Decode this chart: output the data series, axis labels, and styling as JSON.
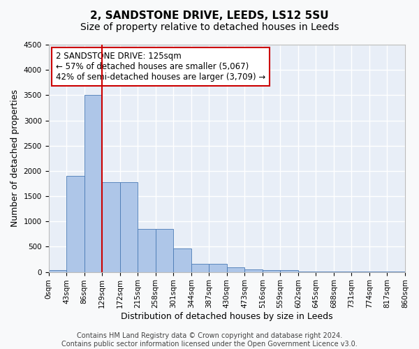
{
  "title": "2, SANDSTONE DRIVE, LEEDS, LS12 5SU",
  "subtitle": "Size of property relative to detached houses in Leeds",
  "xlabel": "Distribution of detached houses by size in Leeds",
  "ylabel": "Number of detached properties",
  "bar_values": [
    40,
    1900,
    3500,
    1780,
    1780,
    850,
    850,
    460,
    160,
    160,
    90,
    55,
    40,
    30,
    15,
    10,
    8,
    5,
    4,
    3
  ],
  "bin_edges": [
    "0sqm",
    "43sqm",
    "86sqm",
    "129sqm",
    "172sqm",
    "215sqm",
    "258sqm",
    "301sqm",
    "344sqm",
    "387sqm",
    "430sqm",
    "473sqm",
    "516sqm",
    "559sqm",
    "602sqm",
    "645sqm",
    "688sqm",
    "731sqm",
    "774sqm",
    "817sqm",
    "860sqm"
  ],
  "bar_color": "#aec6e8",
  "bar_edge_color": "#4a7ab5",
  "vline_color": "#cc0000",
  "annotation_text": "2 SANDSTONE DRIVE: 125sqm\n← 57% of detached houses are smaller (5,067)\n42% of semi-detached houses are larger (3,709) →",
  "annotation_box_color": "#cc0000",
  "ylim": [
    0,
    4500
  ],
  "yticks": [
    0,
    500,
    1000,
    1500,
    2000,
    2500,
    3000,
    3500,
    4000,
    4500
  ],
  "footer_text": "Contains HM Land Registry data © Crown copyright and database right 2024.\nContains public sector information licensed under the Open Government Licence v3.0.",
  "background_color": "#e8eef7",
  "grid_color": "#ffffff",
  "fig_bg_color": "#f8f9fa",
  "title_fontsize": 11,
  "subtitle_fontsize": 10,
  "axis_label_fontsize": 9,
  "tick_fontsize": 7.5,
  "annotation_fontsize": 8.5,
  "footer_fontsize": 7
}
